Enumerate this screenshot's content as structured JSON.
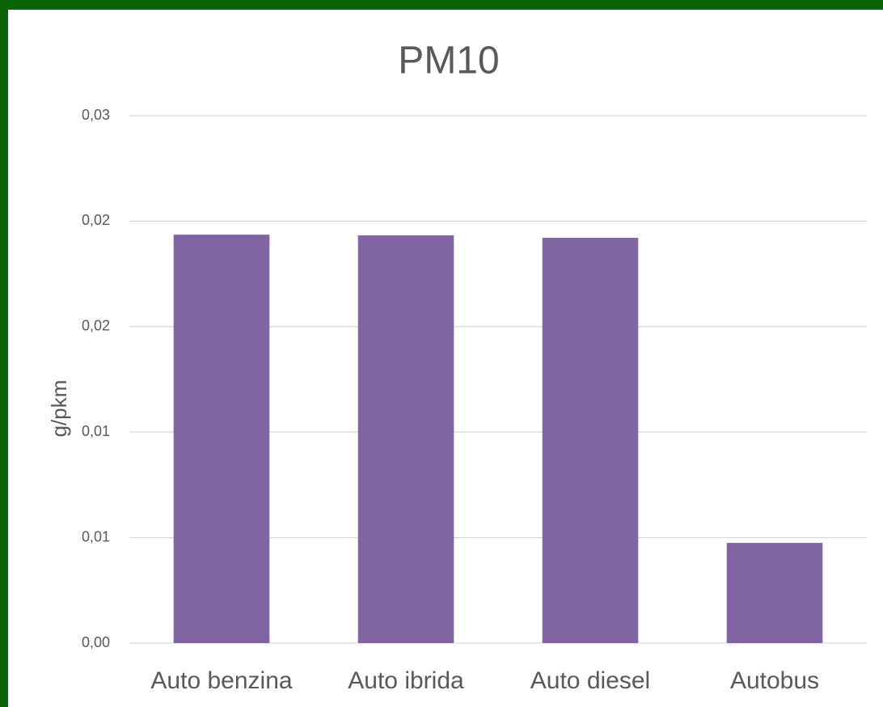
{
  "chart_data": {
    "type": "bar",
    "title": "PM10",
    "y_label": "g/pkm",
    "categories": [
      "Auto benzina",
      "Auto ibrida",
      "Auto diesel",
      "Autobus"
    ],
    "values": [
      0.01936,
      0.01933,
      0.01921,
      0.00475
    ],
    "color": "#8064a2",
    "ylim": [
      0,
      0.025
    ],
    "yticks": [
      {
        "value": 0,
        "label": "0,00"
      },
      {
        "value": 0.005,
        "label": "0,01"
      },
      {
        "value": 0.01,
        "label": "0,01"
      },
      {
        "value": 0.015,
        "label": "0,02"
      },
      {
        "value": 0.02,
        "label": "0,02"
      },
      {
        "value": 0.025,
        "label": "0,03"
      }
    ],
    "grid": true
  }
}
